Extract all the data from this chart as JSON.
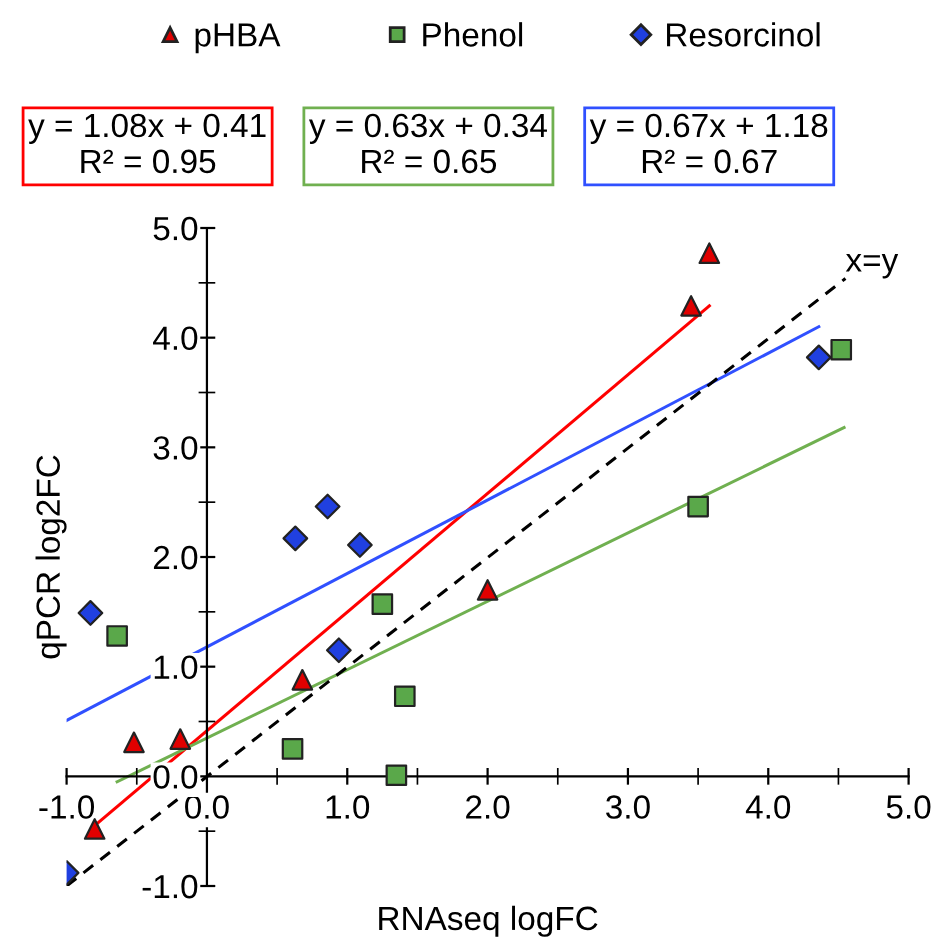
{
  "chart_data": {
    "type": "scatter",
    "xlabel": "RNAseq logFC",
    "ylabel": "qPCR log2FC",
    "xlim": [
      -1,
      5
    ],
    "ylim": [
      -1,
      5
    ],
    "xticks": [
      {
        "value": -1,
        "label": "-1.0"
      },
      {
        "value": 0,
        "label": "0.0"
      },
      {
        "value": 1,
        "label": "1.0"
      },
      {
        "value": 2,
        "label": "2.0"
      },
      {
        "value": 3,
        "label": "3.0"
      },
      {
        "value": 4,
        "label": "4.0"
      },
      {
        "value": 5,
        "label": "5.0"
      }
    ],
    "yticks": [
      {
        "value": -1,
        "label": "-1.0"
      },
      {
        "value": 0,
        "label": "0.0"
      },
      {
        "value": 1,
        "label": "1.0"
      },
      {
        "value": 2,
        "label": "2.0"
      },
      {
        "value": 3,
        "label": "3.0"
      },
      {
        "value": 4,
        "label": "4.0"
      },
      {
        "value": 5,
        "label": "5.0"
      }
    ],
    "grid": false,
    "legend": "top",
    "series": [
      {
        "name": "pHBA",
        "color": "#e00000",
        "marker": "triangle",
        "x": [
          -0.8,
          -0.52,
          -0.19,
          0.68,
          2.0,
          3.45,
          3.58
        ],
        "values": [
          -0.48,
          0.31,
          0.34,
          0.88,
          1.7,
          4.29,
          4.77
        ]
      },
      {
        "name": "Phenol",
        "color": "#5aa84a",
        "marker": "square",
        "x": [
          -0.64,
          0.61,
          1.25,
          1.41,
          1.35,
          3.5,
          4.52
        ],
        "values": [
          1.28,
          0.25,
          1.57,
          0.73,
          0.01,
          2.46,
          3.89
        ]
      },
      {
        "name": "Resorcinol",
        "color": "#2040e0",
        "marker": "diamond",
        "x": [
          -1.0,
          -0.83,
          0.63,
          0.86,
          1.09,
          0.94,
          4.36
        ],
        "values": [
          -0.88,
          1.49,
          2.17,
          2.46,
          2.11,
          1.15,
          3.82
        ]
      },
      {
        "type": "line",
        "color": "#ff0000",
        "line_style": "solid",
        "x": [
          -0.8,
          3.58
        ],
        "values": [
          -0.45,
          4.29
        ]
      },
      {
        "type": "line",
        "color": "#70b050",
        "line_style": "solid",
        "x": [
          -0.64,
          4.54
        ],
        "values": [
          -0.05,
          3.18
        ]
      },
      {
        "type": "line",
        "color": "#3050ff",
        "line_style": "solid",
        "x": [
          -1.0,
          4.36
        ],
        "values": [
          0.51,
          4.1
        ]
      },
      {
        "type": "line",
        "color": "#000000",
        "line_style": "dashed",
        "x": [
          -1.0,
          4.55
        ],
        "values": [
          -1.0,
          4.54
        ]
      }
    ],
    "annotations": [
      "y = 1.08x + 0.41\nR² = 0.95",
      "y = 0.63x + 0.34\nR² = 0.65",
      "y = 0.67x + 1.18\nR² = 0.67",
      {
        "text": "x=y",
        "x": 4.55,
        "y": 4.54
      }
    ]
  }
}
